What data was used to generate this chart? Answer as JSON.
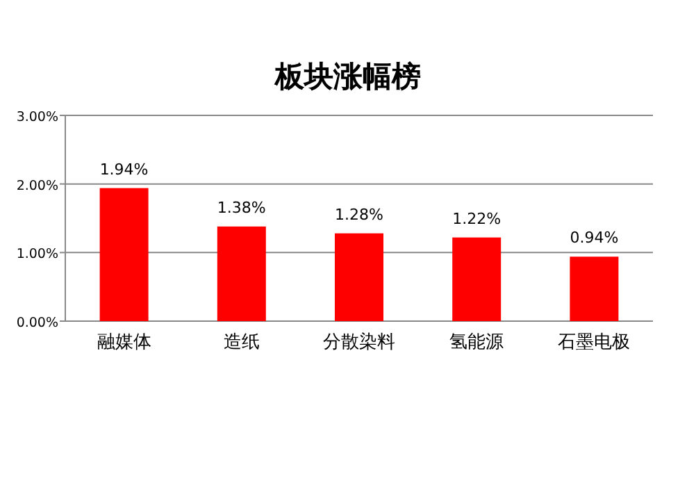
{
  "chart_data": {
    "type": "bar",
    "title": "板块涨幅榜",
    "categories": [
      "融媒体",
      "造纸",
      "分散染料",
      "氢能源",
      "石墨电极"
    ],
    "values": [
      1.94,
      1.38,
      1.28,
      1.22,
      0.94
    ],
    "value_labels": [
      "1.94%",
      "1.38%",
      "1.28%",
      "1.22%",
      "0.94%"
    ],
    "color": "#ff0000",
    "ylim": [
      0,
      3
    ],
    "yticks": [
      {
        "value": 0,
        "label": "0.00%"
      },
      {
        "value": 1,
        "label": "1.00%"
      },
      {
        "value": 2,
        "label": "2.00%"
      },
      {
        "value": 3,
        "label": "3.00%"
      }
    ],
    "grid": "y"
  }
}
